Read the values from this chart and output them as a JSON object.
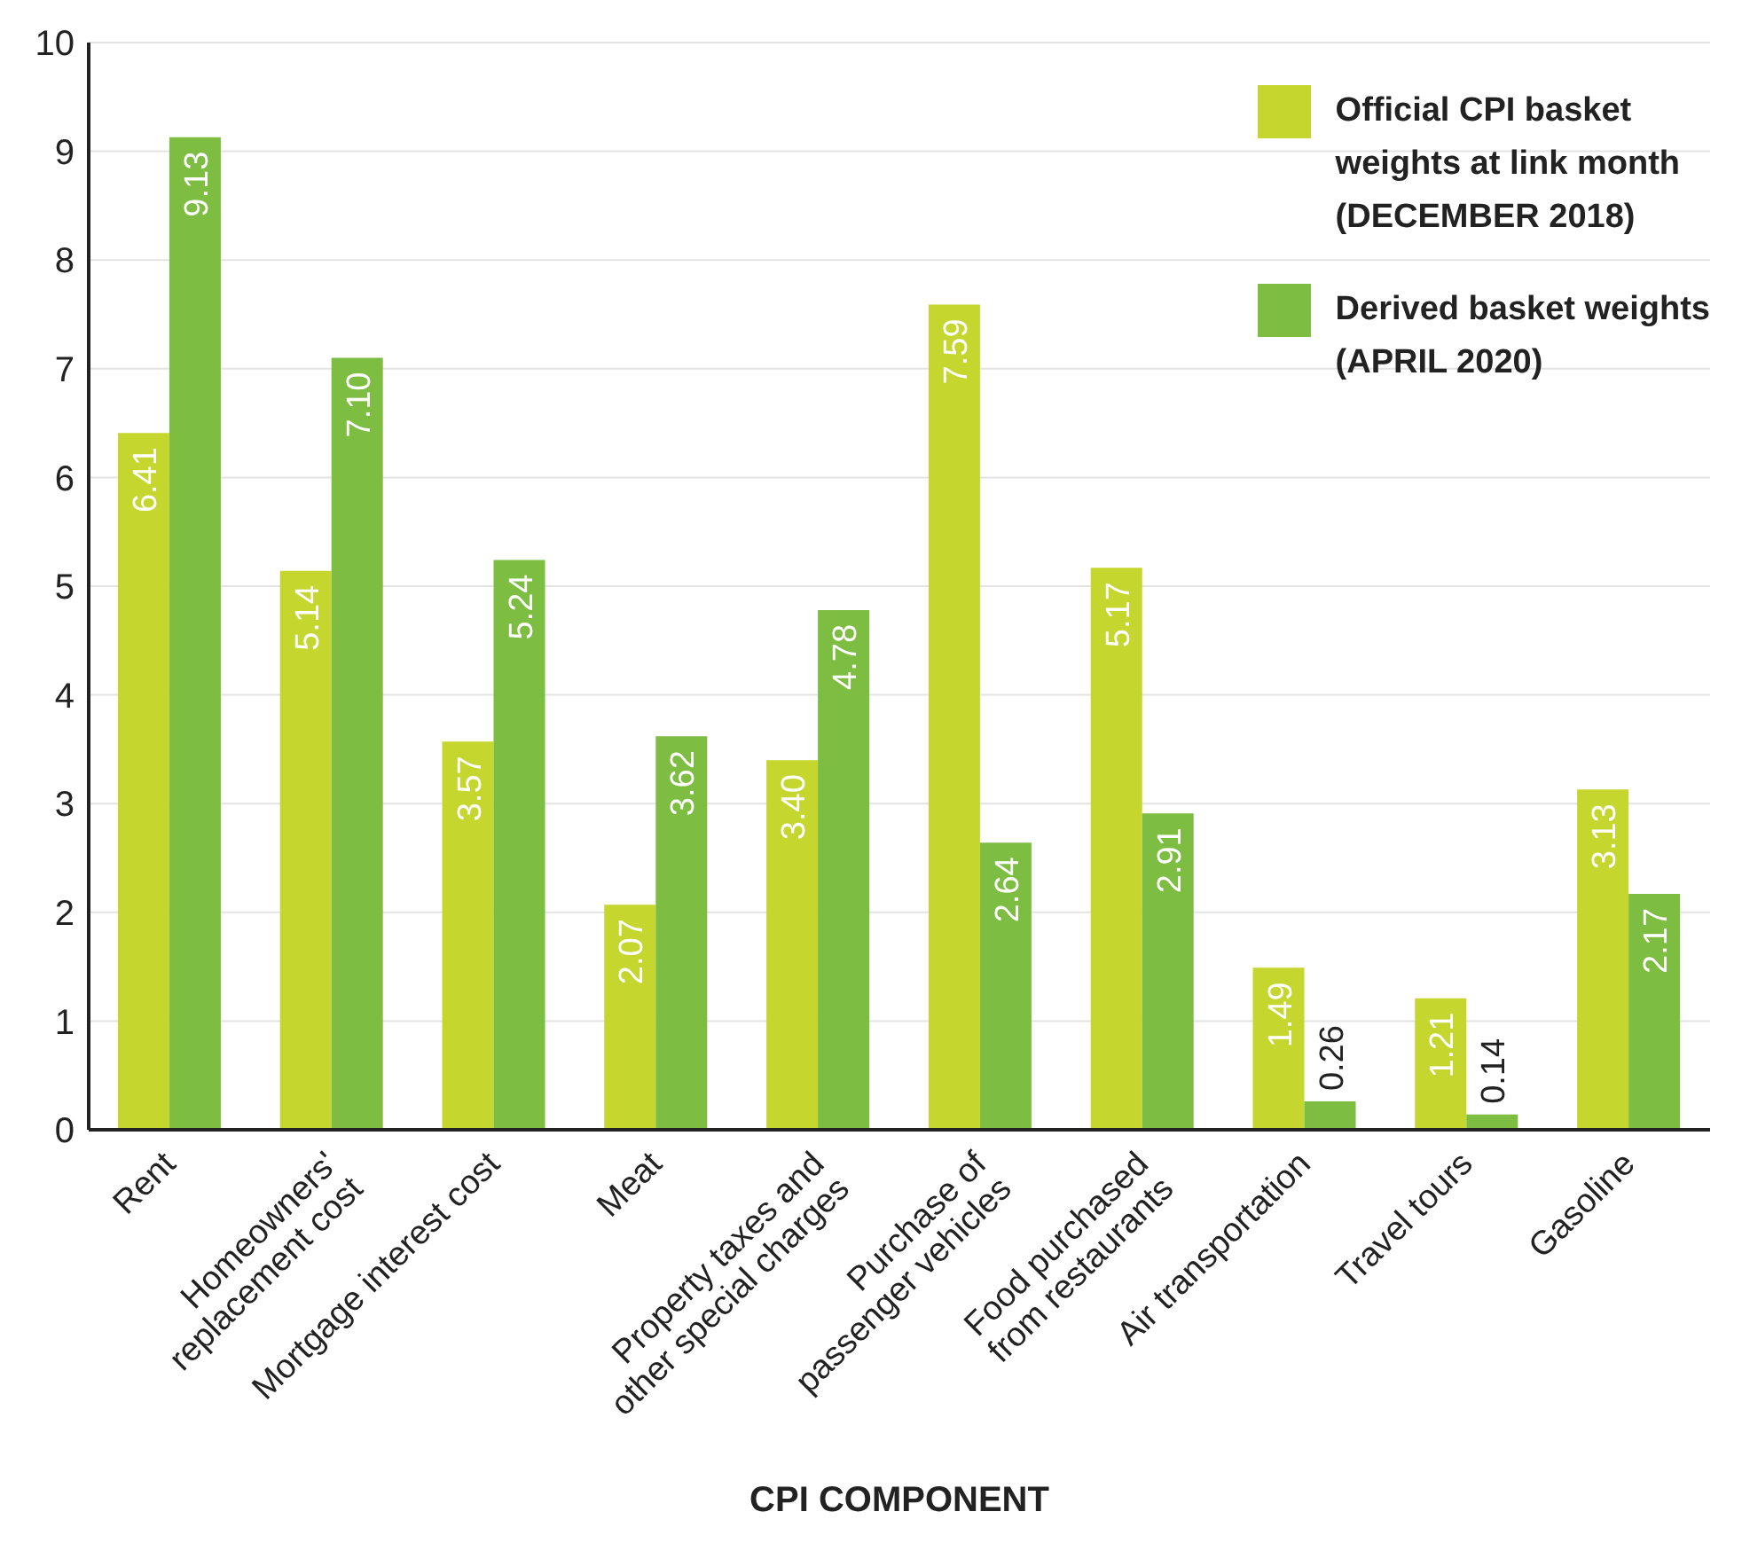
{
  "chart_data": {
    "type": "bar",
    "xlabel": "CPI COMPONENT",
    "categories": [
      "Rent",
      "Homeowners'\nreplacement cost",
      "Mortgage interest cost",
      "Meat",
      "Property taxes and\nother special charges",
      "Purchase of\npassenger vehicles",
      "Food purchased\nfrom restaurants",
      "Air transportation",
      "Travel tours",
      "Gasoline"
    ],
    "series": [
      {
        "name": "Official CPI basket\nweights at link month\n(DECEMBER 2018)",
        "color": "#c5d62f",
        "values": [
          6.41,
          5.14,
          3.57,
          2.07,
          3.4,
          7.59,
          5.17,
          1.49,
          1.21,
          3.13
        ],
        "value_labels": [
          "6.41",
          "5.14",
          "3.57",
          "2.07",
          "3.40",
          "7.59",
          "5.17",
          "1.49",
          "1.21",
          "3.13"
        ]
      },
      {
        "name": "Derived basket weights\n(APRIL 2020)",
        "color": "#7dbd42",
        "values": [
          9.13,
          7.1,
          5.24,
          3.62,
          4.78,
          2.64,
          2.91,
          0.26,
          0.14,
          2.17
        ],
        "value_labels": [
          "9.13",
          "7.10",
          "5.24",
          "3.62",
          "4.78",
          "2.64",
          "2.91",
          "0.26",
          "0.14",
          "2.17"
        ]
      }
    ],
    "ylim": [
      0,
      10
    ],
    "yticks": [
      0,
      1,
      2,
      3,
      4,
      5,
      6,
      7,
      8,
      9,
      10
    ],
    "grid": "y",
    "legend": "top right"
  }
}
